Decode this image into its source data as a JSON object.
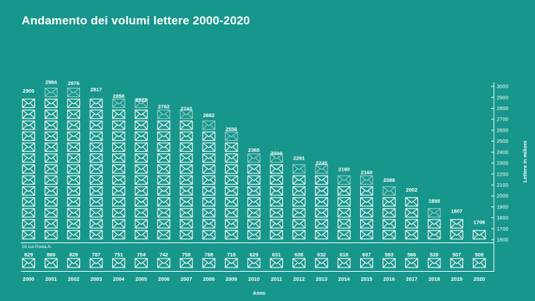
{
  "title": "Andamento dei volumi lettere 2000-2020",
  "colors": {
    "background": "#17968b",
    "foreground": "#ffffff"
  },
  "icons": {
    "envelope": "envelope-icon"
  },
  "chart_data": {
    "type": "bar",
    "title": "Andamento dei volumi lettere 2000-2020",
    "xlabel": "Anno",
    "ylabel": "Lettere in milioni",
    "ylim": [
      1600,
      3000
    ],
    "yticks": [
      3000,
      2900,
      2800,
      2700,
      2600,
      2500,
      2400,
      2300,
      2200,
      2100,
      2000,
      1900,
      1800,
      1700,
      1600
    ],
    "categories": [
      "2000",
      "2001",
      "2002",
      "2003",
      "2004",
      "2005",
      "2006",
      "2007",
      "2008",
      "2009",
      "2010",
      "2011",
      "2012",
      "2013",
      "2014",
      "2015",
      "2016",
      "2017",
      "2018",
      "2019",
      "2020"
    ],
    "series": [
      {
        "values": [
          2905,
          2984,
          2976,
          2917,
          2858,
          2822,
          2762,
          2742,
          2682,
          2556,
          2365,
          2334,
          2291,
          2245,
          2190,
          2160,
          2089,
          2002,
          1898,
          1807,
          1706
        ]
      }
    ],
    "sub_label": "Di cui Posta A:",
    "sub_values": [
      829,
      869,
      829,
      787,
      751,
      754,
      742,
      758,
      768,
      716,
      629,
      631,
      638,
      632,
      618,
      607,
      593,
      566,
      528,
      507,
      508
    ]
  }
}
